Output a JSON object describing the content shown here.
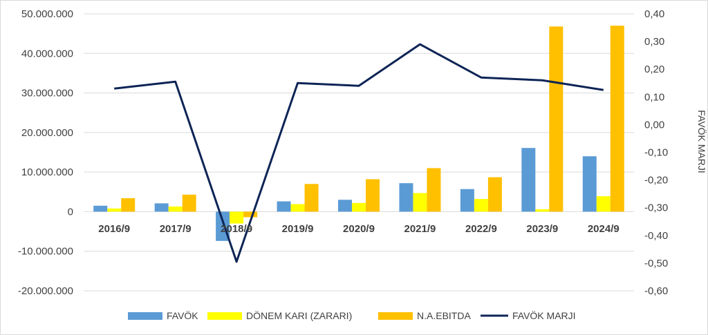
{
  "chart_data": {
    "type": "bar",
    "categories": [
      "2016/9",
      "2017/9",
      "2018/9",
      "2019/9",
      "2020/9",
      "2021/9",
      "2022/9",
      "2023/9",
      "2024/9"
    ],
    "series": [
      {
        "name": "FAVÖK",
        "type": "bar",
        "axis": "left",
        "color": "#5b9bd5",
        "values": [
          1500000,
          2100000,
          -7400000,
          2600000,
          3000000,
          7200000,
          5700000,
          16100000,
          14000000
        ]
      },
      {
        "name": "DÖNEM KARI (ZARARI)",
        "type": "bar",
        "axis": "left",
        "color": "#ffff00",
        "values": [
          800000,
          1300000,
          -3000000,
          1900000,
          2200000,
          4700000,
          3200000,
          600000,
          3900000
        ]
      },
      {
        "name": "N.A.EBITDA",
        "type": "bar",
        "axis": "left",
        "color": "#ffc000",
        "values": [
          3400000,
          4300000,
          -1400000,
          7000000,
          8200000,
          11000000,
          8700000,
          46800000,
          47000000
        ]
      },
      {
        "name": "FAVÖK MARJI",
        "type": "line",
        "axis": "right",
        "color": "#0d2456",
        "values": [
          0.13,
          0.155,
          -0.495,
          0.15,
          0.14,
          0.29,
          0.17,
          0.16,
          0.125
        ]
      }
    ],
    "ylim": [
      -20000000,
      50000000
    ],
    "y_ticks": [
      "-20.000.000",
      "-10.000.000",
      "0",
      "10.000.000",
      "20.000.000",
      "30.000.000",
      "40.000.000",
      "50.000.000"
    ],
    "y_tick_values": [
      -20000000,
      -10000000,
      0,
      10000000,
      20000000,
      30000000,
      40000000,
      50000000
    ],
    "y2lim": [
      -0.6,
      0.4
    ],
    "y2_ticks": [
      "-0,60",
      "-0,50",
      "-0,40",
      "-0,30",
      "-0,20",
      "-0,10",
      "0,00",
      "0,10",
      "0,20",
      "0,30",
      "0,40"
    ],
    "y2_tick_values": [
      -0.6,
      -0.5,
      -0.4,
      -0.3,
      -0.2,
      -0.1,
      0,
      0.1,
      0.2,
      0.3,
      0.4
    ],
    "y2label": "FAVÖK MARJI",
    "grid": true,
    "legend_position": "bottom"
  }
}
